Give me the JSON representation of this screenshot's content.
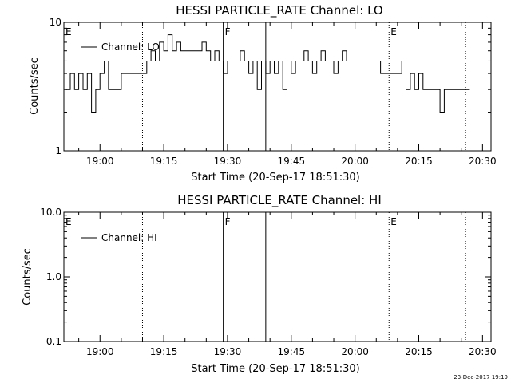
{
  "chart_data": [
    {
      "type": "line",
      "title": "HESSI PARTICLE_RATE Channel: LO",
      "xlabel": "Start Time (20-Sep-17 18:51:30)",
      "ylabel": "Counts/sec",
      "yscale": "log",
      "ylim": [
        1,
        10
      ],
      "xlim": [
        "18:51:30",
        "20:32:00"
      ],
      "x_ticks": [
        "19:00",
        "19:15",
        "19:30",
        "19:45",
        "20:00",
        "20:15",
        "20:30"
      ],
      "y_ticks": [
        "1",
        "10"
      ],
      "legend": {
        "entries": [
          "Channel: LO"
        ],
        "placement": "top-left"
      },
      "events": [
        {
          "label": "E",
          "time": "18:51:30",
          "style": "dotted"
        },
        {
          "time": "19:10:00",
          "style": "dotted"
        },
        {
          "label": "F",
          "time": "19:29:00",
          "style": "solid"
        },
        {
          "time": "19:39:00",
          "style": "solid"
        },
        {
          "label": "E",
          "time": "20:08:00",
          "style": "dotted"
        },
        {
          "time": "20:26:00",
          "style": "dotted"
        }
      ],
      "series": [
        {
          "name": "Channel: LO",
          "x": [
            "18:52",
            "18:53",
            "18:54",
            "18:55",
            "18:56",
            "18:57",
            "18:58",
            "18:59",
            "19:00",
            "19:01",
            "19:02",
            "19:03",
            "19:04",
            "19:05",
            "19:06",
            "19:07",
            "19:08",
            "19:09",
            "19:10",
            "19:11",
            "19:12",
            "19:13",
            "19:14",
            "19:15",
            "19:16",
            "19:17",
            "19:18",
            "19:19",
            "19:20",
            "19:21",
            "19:22",
            "19:23",
            "19:24",
            "19:25",
            "19:26",
            "19:27",
            "19:28",
            "19:29",
            "19:30",
            "19:31",
            "19:32",
            "19:33",
            "19:34",
            "19:35",
            "19:36",
            "19:37",
            "19:38",
            "19:39",
            "19:40",
            "19:41",
            "19:42",
            "19:43",
            "19:44",
            "19:45",
            "19:46",
            "19:47",
            "19:48",
            "19:49",
            "19:50",
            "19:51",
            "19:52",
            "19:53",
            "19:54",
            "19:55",
            "19:56",
            "19:57",
            "19:58",
            "19:59",
            "20:00",
            "20:01",
            "20:02",
            "20:03",
            "20:04",
            "20:05",
            "20:06",
            "20:07",
            "20:08",
            "20:09",
            "20:10",
            "20:11",
            "20:12",
            "20:13",
            "20:14",
            "20:15",
            "20:16",
            "20:17",
            "20:18",
            "20:19",
            "20:20",
            "20:21",
            "20:22",
            "20:23",
            "20:24",
            "20:25",
            "20:26"
          ],
          "values": [
            3,
            4,
            3,
            4,
            3,
            4,
            2,
            3,
            4,
            5,
            3,
            3,
            3,
            4,
            4,
            4,
            4,
            4,
            4,
            5,
            6,
            5,
            7,
            6,
            8,
            6,
            7,
            6,
            6,
            6,
            6,
            6,
            7,
            6,
            5,
            6,
            5,
            4,
            5,
            5,
            5,
            6,
            5,
            4,
            5,
            3,
            5,
            4,
            5,
            4,
            5,
            3,
            5,
            4,
            5,
            5,
            6,
            5,
            4,
            5,
            6,
            5,
            5,
            4,
            5,
            6,
            5,
            5,
            5,
            5,
            5,
            5,
            5,
            5,
            4,
            4,
            4,
            4,
            4,
            5,
            3,
            4,
            3,
            4,
            3,
            3,
            3,
            3,
            2,
            3,
            3,
            3,
            3,
            3,
            3
          ]
        }
      ]
    },
    {
      "type": "line",
      "title": "HESSI PARTICLE_RATE Channel: HI",
      "xlabel": "Start Time (20-Sep-17 18:51:30)",
      "ylabel": "Counts/sec",
      "yscale": "log",
      "ylim": [
        0.1,
        10
      ],
      "xlim": [
        "18:51:30",
        "20:32:00"
      ],
      "x_ticks": [
        "19:00",
        "19:15",
        "19:30",
        "19:45",
        "20:00",
        "20:15",
        "20:30"
      ],
      "y_ticks": [
        "0.1",
        "1.0",
        "10.0"
      ],
      "legend": {
        "entries": [
          "Channel: HI"
        ],
        "placement": "top-left"
      },
      "events": [
        {
          "label": "E",
          "time": "18:51:30",
          "style": "dotted"
        },
        {
          "time": "19:10:00",
          "style": "dotted"
        },
        {
          "label": "F",
          "time": "19:29:00",
          "style": "solid"
        },
        {
          "time": "19:39:00",
          "style": "solid"
        },
        {
          "label": "E",
          "time": "20:08:00",
          "style": "dotted"
        },
        {
          "time": "20:26:00",
          "style": "dotted"
        }
      ],
      "series": [
        {
          "name": "Channel: HI",
          "x": [],
          "values": []
        }
      ]
    }
  ],
  "footer": {
    "timestamp": "23-Dec-2017 19:19"
  }
}
